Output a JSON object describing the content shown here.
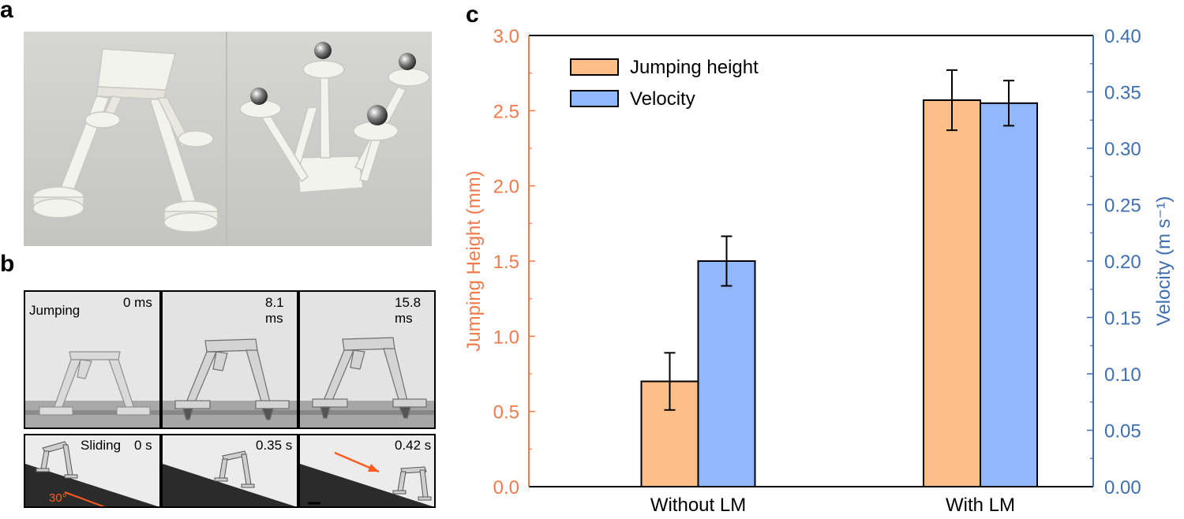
{
  "panels": {
    "a": "a",
    "b": "b",
    "c": "c"
  },
  "panel_b": {
    "jumping": {
      "label": "Jumping",
      "times": [
        "0 ms",
        "8.1 ms",
        "15.8 ms"
      ]
    },
    "sliding": {
      "label": "Sliding",
      "times": [
        "0 s",
        "0.35 s",
        "0.42 s"
      ],
      "angle": "30°"
    },
    "colors": {
      "annotation": "#ff5a1f"
    }
  },
  "chart_data": {
    "type": "bar",
    "categories": [
      "Without LM",
      "With LM"
    ],
    "series": [
      {
        "name": "Jumping height",
        "axis": "left",
        "values": [
          0.7,
          2.57
        ],
        "errors": [
          0.19,
          0.2
        ],
        "color": "#fdbf87"
      },
      {
        "name": "Velocity",
        "axis": "right",
        "values": [
          0.2,
          0.34
        ],
        "errors": [
          0.022,
          0.02
        ],
        "color": "#91b8fd"
      }
    ],
    "ylabel": "Jumping Height (mm)",
    "y2label": "Velocity (m s⁻¹)",
    "ylim": [
      0,
      3.0
    ],
    "y2lim": [
      0,
      0.4
    ],
    "yticks": [
      "0.0",
      "0.5",
      "1.0",
      "1.5",
      "2.0",
      "2.5",
      "3.0"
    ],
    "y2ticks": [
      "0.00",
      "0.05",
      "0.10",
      "0.15",
      "0.20",
      "0.25",
      "0.30",
      "0.35",
      "0.40"
    ],
    "legend_position": "top-left",
    "left_axis_color": "#f27a4a",
    "right_axis_color": "#3f6fb2"
  }
}
